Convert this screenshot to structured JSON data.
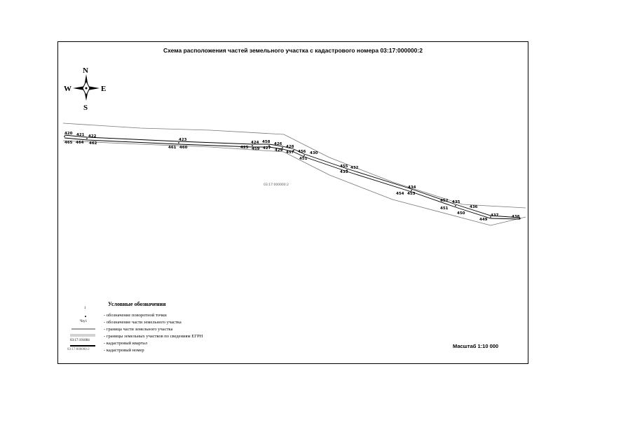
{
  "title": "Схема расположения частей земельного участка с кадастрового номера 03:17:000000:2",
  "compass": {
    "n": "N",
    "s": "S",
    "e": "E",
    "w": "W"
  },
  "block_label": "03:17:000000:2",
  "points_upper": [
    "420",
    "421",
    "422",
    "423",
    "424",
    "458",
    "426",
    "428",
    "430",
    "432",
    "434",
    "435",
    "436",
    "437",
    "438"
  ],
  "points_lower": [
    "465",
    "464",
    "462",
    "461",
    "460",
    "425",
    "459",
    "427",
    "429",
    "457",
    "456",
    "451",
    "433",
    "455",
    "454",
    "453",
    "452",
    "451",
    "450",
    "449"
  ],
  "legend": {
    "title": "Условные обозначения",
    "sym_point_label": "1",
    "sym_part_label": "Чзу1",
    "sym_quarter_label": "03:17:191004",
    "sym_cad_label": "03:17:000000:2",
    "items": [
      "- обозначение поворотной точки",
      "- обозначение части земельного участка",
      "- граница части земельного участка",
      "- границы земельных участков по сведениям ЕГРН",
      "- кадастровый квартал",
      "- кадастровый номер"
    ]
  },
  "scale": "Масштаб 1:10 000"
}
